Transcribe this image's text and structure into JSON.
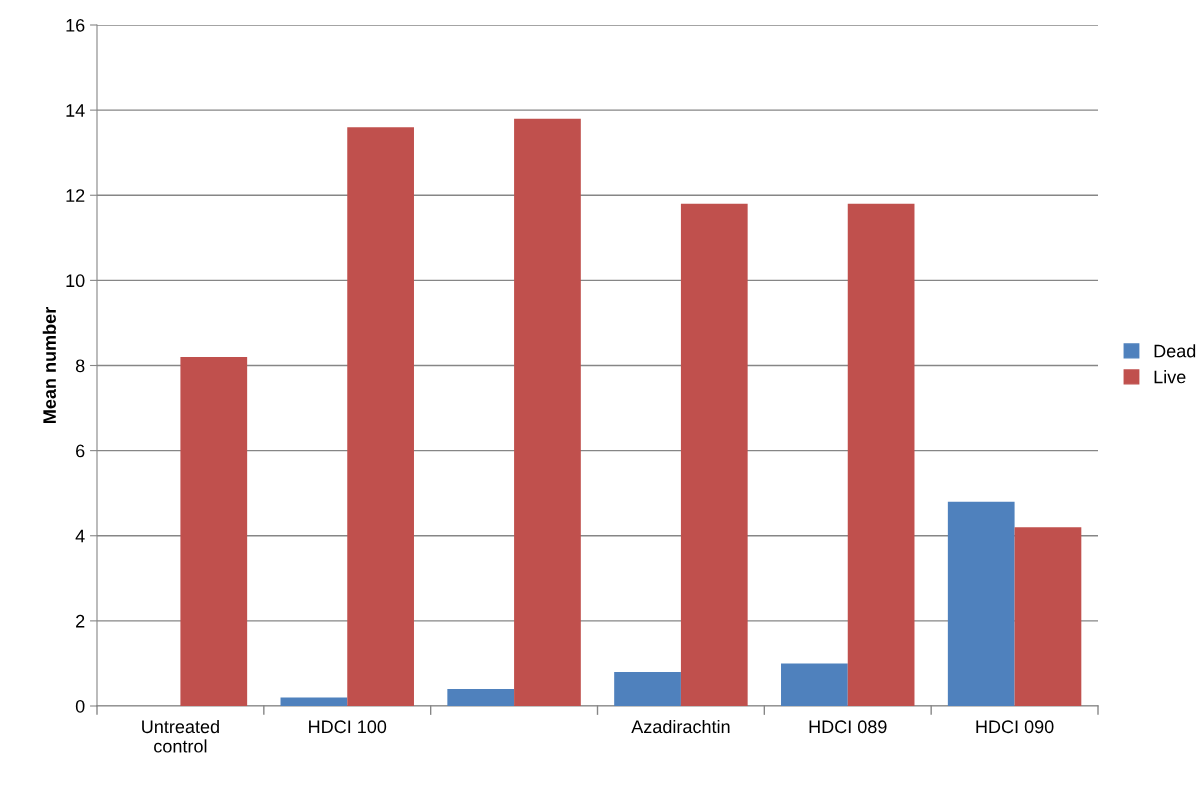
{
  "chart_data": {
    "type": "bar",
    "ylabel": "Mean number",
    "categories": [
      "Untreated\ncontrol",
      "HDCI 100",
      null,
      "Azadirachtin",
      "HDCI 089",
      "HDCI 090"
    ],
    "series": [
      {
        "name": "Dead",
        "color": "#4f81bd",
        "values": [
          0,
          0.2,
          0.4,
          0.8,
          1.0,
          4.8
        ]
      },
      {
        "name": "Live",
        "color": "#c0504d",
        "values": [
          8.2,
          13.6,
          13.8,
          11.8,
          11.8,
          4.2
        ]
      }
    ],
    "ylim": [
      0,
      16
    ],
    "yticks": [
      0,
      2,
      4,
      6,
      8,
      10,
      12,
      14,
      16
    ],
    "grid": "y",
    "legend": "right"
  }
}
